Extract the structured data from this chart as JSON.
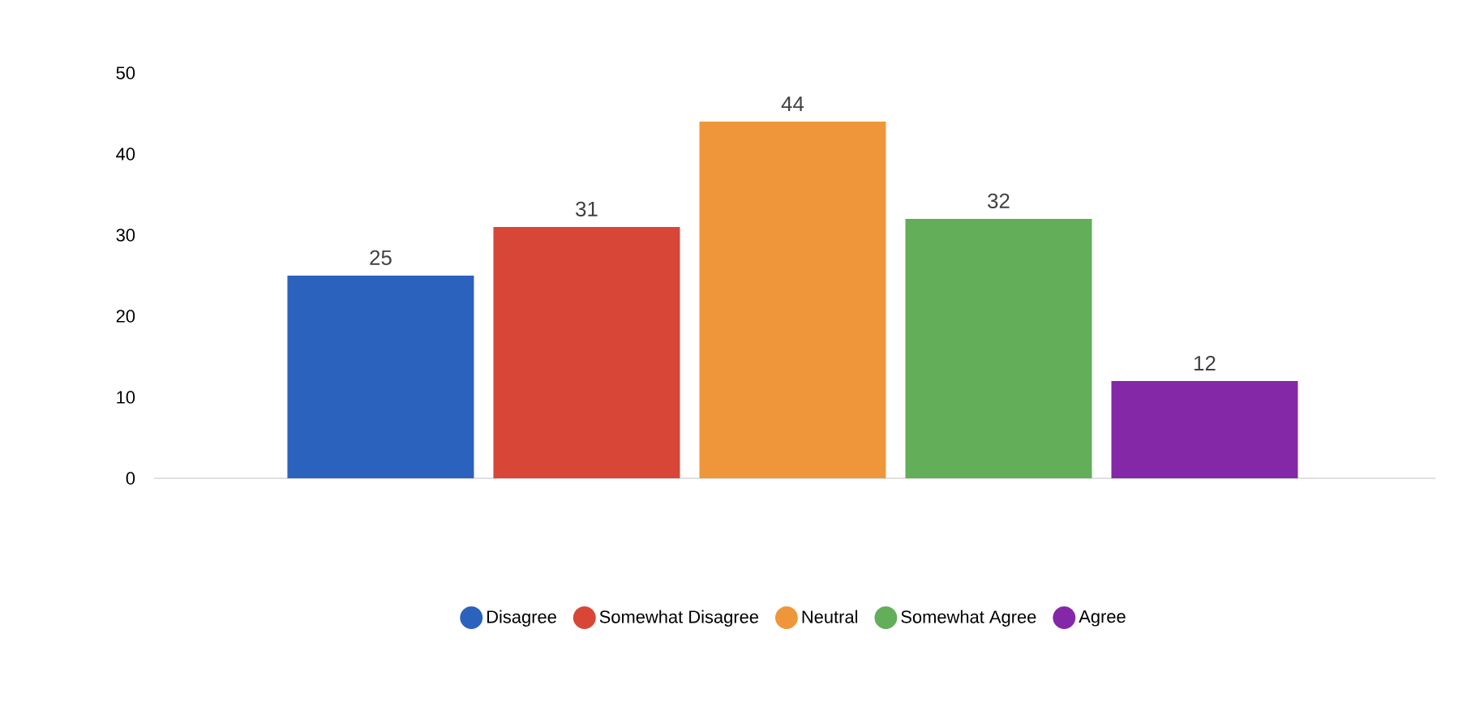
{
  "chart_data": {
    "type": "bar",
    "categories": [
      null,
      null,
      null,
      null,
      null
    ],
    "series": [
      {
        "name": "Disagree",
        "color": "#2a62be",
        "values": [
          25,
          null,
          null,
          null,
          null
        ]
      },
      {
        "name": "Somewhat Disagree",
        "color": "#d84637",
        "values": [
          null,
          31,
          null,
          null,
          null
        ]
      },
      {
        "name": "Neutral",
        "color": "#f0963a",
        "values": [
          null,
          null,
          44,
          null,
          null
        ]
      },
      {
        "name": "Somewhat Agree",
        "color": "#62ae59",
        "values": [
          null,
          null,
          null,
          32,
          null
        ]
      },
      {
        "name": "Agree",
        "color": "#8428a7",
        "values": [
          null,
          null,
          null,
          null,
          12
        ]
      }
    ],
    "ylim": [
      0,
      50
    ],
    "yticks": [
      0,
      10,
      20,
      30,
      40,
      50
    ],
    "grid": false,
    "legend": "bottom",
    "data_labels": true
  }
}
